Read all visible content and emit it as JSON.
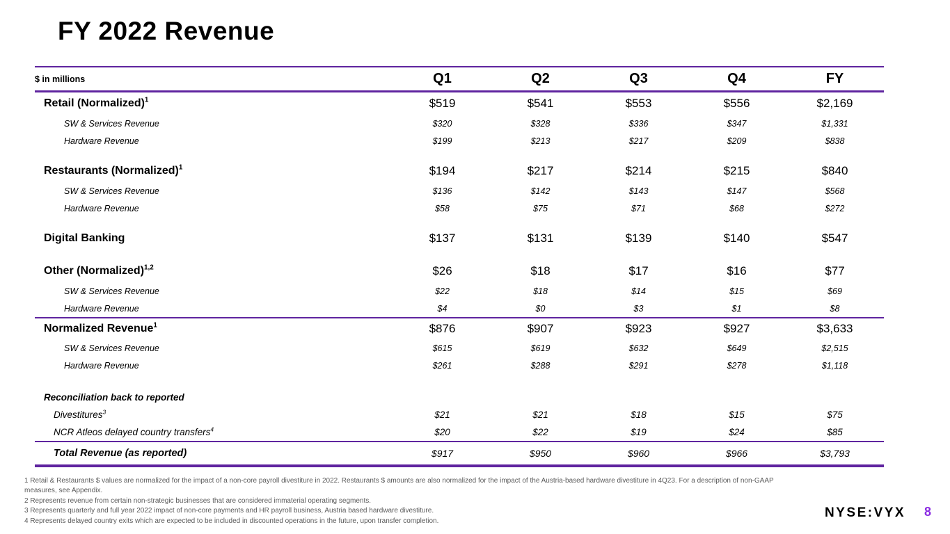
{
  "slide": {
    "title": "FY 2022 Revenue",
    "ticker": "NYSE:VYX",
    "page_number": "8"
  },
  "colors": {
    "accent_purple": "#5F249F",
    "page_number_purple": "#8A2BE2"
  },
  "table": {
    "unit_label": "$ in millions",
    "columns": [
      "Q1",
      "Q2",
      "Q3",
      "Q4",
      "FY"
    ],
    "rows": [
      {
        "label": "Retail (Normalized)",
        "sup": "1",
        "style": "main",
        "values": [
          "$519",
          "$541",
          "$553",
          "$556",
          "$2,169"
        ]
      },
      {
        "label": "SW & Services Revenue",
        "style": "sub",
        "values": [
          "$320",
          "$328",
          "$336",
          "$347",
          "$1,331"
        ]
      },
      {
        "label": "Hardware Revenue",
        "style": "sub",
        "values": [
          "$199",
          "$213",
          "$217",
          "$209",
          "$838"
        ]
      },
      {
        "label": "Restaurants (Normalized)",
        "sup": "1",
        "style": "main",
        "gap": "sm",
        "values": [
          "$194",
          "$217",
          "$214",
          "$215",
          "$840"
        ]
      },
      {
        "label": "SW & Services Revenue",
        "style": "sub",
        "values": [
          "$136",
          "$142",
          "$143",
          "$147",
          "$568"
        ]
      },
      {
        "label": "Hardware Revenue",
        "style": "sub",
        "values": [
          "$58",
          "$75",
          "$71",
          "$68",
          "$272"
        ]
      },
      {
        "label": "Digital Banking",
        "style": "main",
        "gap": "sm",
        "values": [
          "$137",
          "$131",
          "$139",
          "$140",
          "$547"
        ]
      },
      {
        "label": "Other (Normalized)",
        "sup": "1,2",
        "style": "main",
        "gap": "sm",
        "values": [
          "$26",
          "$18",
          "$17",
          "$16",
          "$77"
        ]
      },
      {
        "label": "SW & Services Revenue",
        "style": "sub",
        "values": [
          "$22",
          "$18",
          "$14",
          "$15",
          "$69"
        ]
      },
      {
        "label": "Hardware Revenue",
        "style": "sub",
        "values": [
          "$4",
          "$0",
          "$3",
          "$1",
          "$8"
        ]
      },
      {
        "label": "Normalized Revenue",
        "sup": "1",
        "style": "main",
        "line_above": true,
        "values": [
          "$876",
          "$907",
          "$923",
          "$927",
          "$3,633"
        ]
      },
      {
        "label": "SW & Services Revenue",
        "style": "sub",
        "values": [
          "$615",
          "$619",
          "$632",
          "$649",
          "$2,515"
        ]
      },
      {
        "label": "Hardware Revenue",
        "style": "sub",
        "values": [
          "$261",
          "$288",
          "$291",
          "$278",
          "$1,118"
        ]
      },
      {
        "label": "Reconciliation back to reported",
        "style": "recon-title",
        "gap": "lg",
        "values": []
      },
      {
        "label": "Divestitures",
        "sup": "3",
        "style": "recon-item",
        "values": [
          "$21",
          "$21",
          "$18",
          "$15",
          "$75"
        ]
      },
      {
        "label": "NCR Atleos delayed country transfers",
        "sup": "4",
        "style": "recon-item",
        "values": [
          "$20",
          "$22",
          "$19",
          "$24",
          "$85"
        ]
      },
      {
        "label": "Total Revenue (as reported)",
        "style": "total",
        "line_above": true,
        "values": [
          "$917",
          "$950",
          "$960",
          "$966",
          "$3,793"
        ]
      }
    ]
  },
  "footnotes": [
    "1 Retail & Restaurants $ values are normalized for the impact of a non-core payroll divestiture in 2022. Restaurants $ amounts are also normalized for the impact of the Austria-based hardware divestiture in 4Q23. For a description of non-GAAP measures, see Appendix.",
    "2  Represents revenue from certain non-strategic businesses that are considered immaterial operating segments.",
    "3 Represents quarterly and full year 2022 impact of non-core payments and HR payroll business, Austria based hardware divestiture.",
    "4 Represents delayed country exits which are expected to be included in discounted operations in the future, upon transfer completion."
  ]
}
